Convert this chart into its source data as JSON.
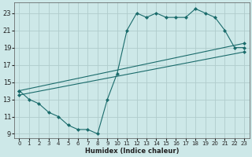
{
  "title": "",
  "xlabel": "Humidex (Indice chaleur)",
  "bg_color": "#cde8e8",
  "grid_color": "#b0cccc",
  "line_color": "#1a6b6b",
  "xlim": [
    -0.5,
    23.5
  ],
  "ylim": [
    8.5,
    24.2
  ],
  "xticks": [
    0,
    1,
    2,
    3,
    4,
    5,
    6,
    7,
    8,
    9,
    10,
    11,
    12,
    13,
    14,
    15,
    16,
    17,
    18,
    19,
    20,
    21,
    22,
    23
  ],
  "yticks": [
    9,
    11,
    13,
    15,
    17,
    19,
    21,
    23
  ],
  "line1_x": [
    0,
    1,
    2,
    3,
    4,
    5,
    6,
    7,
    8,
    9,
    10,
    11,
    12,
    13,
    14,
    15,
    16,
    17,
    18,
    19,
    20,
    21,
    22,
    23
  ],
  "line1_y": [
    14,
    13,
    12.5,
    11.5,
    11,
    10,
    9.5,
    9.5,
    9,
    13,
    16,
    21,
    23,
    22.5,
    23,
    22.5,
    22.5,
    22.5,
    23.5,
    23,
    22.5,
    21,
    19,
    19
  ],
  "line2_x": [
    0,
    23
  ],
  "line2_y": [
    14,
    19.5
  ],
  "line3_x": [
    0,
    23
  ],
  "line3_y": [
    13.5,
    18.5
  ],
  "markersize": 2.5
}
